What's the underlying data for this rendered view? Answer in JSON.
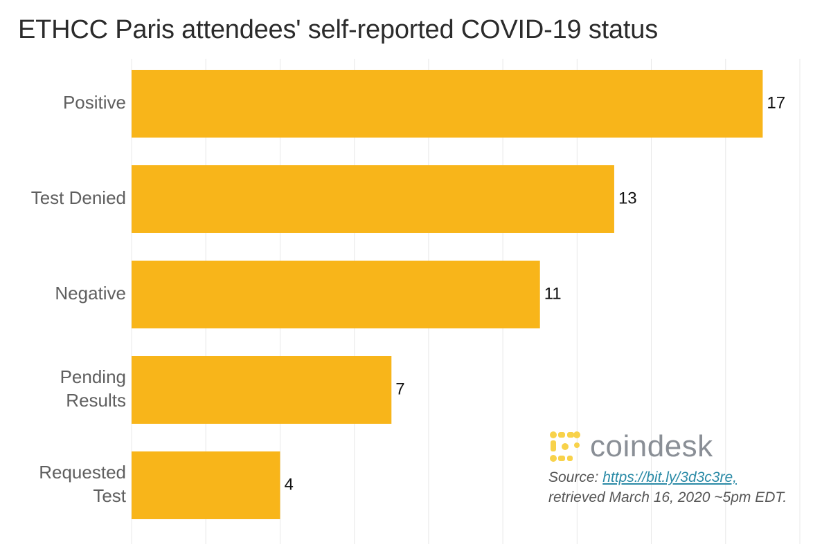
{
  "title": "ETHCC Paris attendees' self-reported COVID-19 status",
  "chart_data": {
    "type": "bar",
    "orientation": "horizontal",
    "title": "ETHCC Paris attendees' self-reported COVID-19 status",
    "categories": [
      [
        "Positive"
      ],
      [
        "Test Denied"
      ],
      [
        "Negative"
      ],
      [
        "Pending",
        "Results"
      ],
      [
        "Requested",
        "Test"
      ]
    ],
    "values": [
      17,
      13,
      11,
      7,
      4
    ],
    "value_labels": [
      "17",
      "13",
      "11",
      "7",
      "4"
    ],
    "xlim": [
      0,
      18
    ],
    "grid": true,
    "bar_color": "#F8B51A"
  },
  "watermark": {
    "logo_text": "coindesk",
    "logo_color": "#F8D24A",
    "source_prefix": "Source: ",
    "source_link": "https://bit.ly/3d3c3re,",
    "source_retrieved": "retrieved March 16, 2020 ~5pm EDT."
  }
}
